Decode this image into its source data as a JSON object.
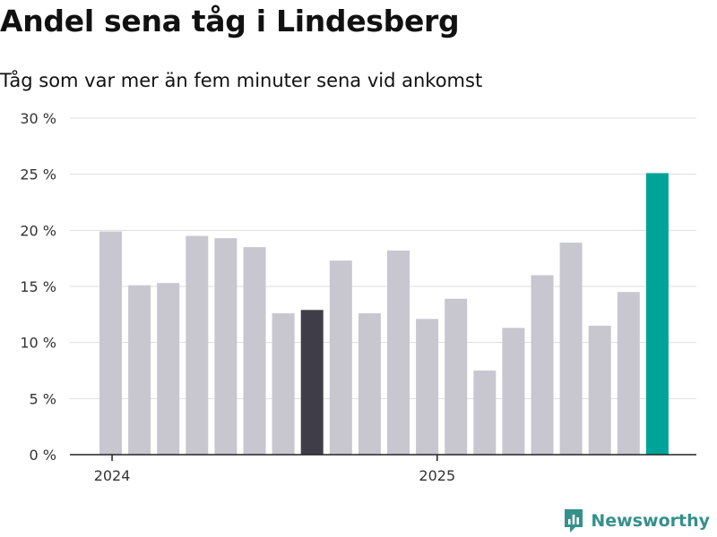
{
  "title": "Andel sena tåg i Lindesberg",
  "subtitle": "Tåg som var mer än fem minuter sena vid ankomst",
  "brand": {
    "name": "Newsworthy",
    "icon": "newsworthy-logo-icon",
    "color": "#35908a"
  },
  "chart_data": {
    "type": "bar",
    "title": "Andel sena tåg i Lindesberg",
    "subtitle": "Tåg som var mer än fem minuter sena vid ankomst",
    "xlabel": "",
    "ylabel": "",
    "y_unit": " %",
    "ylim": [
      0,
      30
    ],
    "yticks": [
      0,
      5,
      10,
      15,
      20,
      25,
      30
    ],
    "grid": true,
    "legend": "none",
    "series": [
      {
        "name": "Andel sena tåg",
        "values": [
          19.9,
          15.1,
          15.3,
          19.5,
          19.3,
          18.5,
          12.6,
          12.9,
          17.3,
          12.6,
          18.2,
          12.1,
          13.9,
          7.5,
          11.3,
          16.0,
          18.9,
          11.5,
          14.5,
          25.1
        ]
      }
    ],
    "x_tick_labels": [
      {
        "label": "2024",
        "position": 0.5
      },
      {
        "label": "2025",
        "position": 11.8
      }
    ],
    "highlight": [
      {
        "index": 7,
        "color": "#3f3e48"
      },
      {
        "index": 19,
        "color": "#00a398"
      }
    ],
    "colors": {
      "default": "#c8c7d0",
      "grid": "#dddddd",
      "axis": "#222222"
    }
  }
}
